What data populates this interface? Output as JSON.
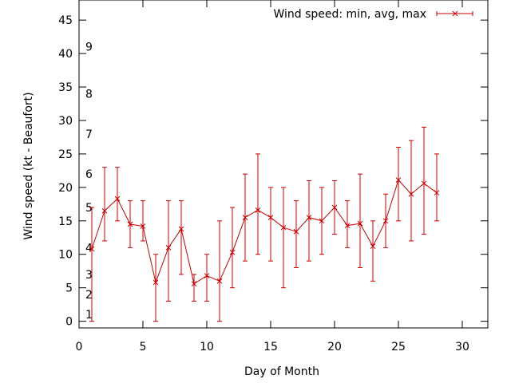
{
  "chart_data": {
    "type": "line",
    "xlabel": "Day of Month",
    "ylabel": "Wind speed (kt - Beaufort)",
    "xlim": [
      0,
      32
    ],
    "ylim": [
      -1,
      48
    ],
    "x_ticks": [
      0,
      5,
      10,
      15,
      20,
      25,
      30
    ],
    "y_ticks": [
      0,
      5,
      10,
      15,
      20,
      25,
      30,
      35,
      40,
      45
    ],
    "x_tick_labels": [
      "0",
      "5",
      "10",
      "15",
      "20",
      "25",
      "30"
    ],
    "y_tick_labels": [
      "0",
      "5",
      "10",
      "15",
      "20",
      "25",
      "30",
      "35",
      "40",
      "45"
    ],
    "beaufort_labels": [
      {
        "label": "1",
        "y": 1
      },
      {
        "label": "2",
        "y": 4
      },
      {
        "label": "3",
        "y": 7
      },
      {
        "label": "4",
        "y": 11
      },
      {
        "label": "5",
        "y": 17
      },
      {
        "label": "6",
        "y": 22
      },
      {
        "label": "7",
        "y": 28
      },
      {
        "label": "8",
        "y": 34
      },
      {
        "label": "9",
        "y": 41
      }
    ],
    "legend_position": "top-right",
    "series": [
      {
        "name": "Wind speed: min, avg, max",
        "color": "#cc0000",
        "x": [
          1,
          2,
          3,
          4,
          5,
          6,
          7,
          8,
          9,
          10,
          11,
          12,
          13,
          14,
          15,
          16,
          17,
          18,
          19,
          20,
          21,
          22,
          23,
          24,
          25,
          26,
          27,
          28
        ],
        "avg": [
          10.8,
          16.5,
          18.3,
          14.5,
          14.2,
          5.8,
          11.0,
          13.8,
          5.6,
          6.8,
          6.0,
          10.3,
          15.5,
          16.6,
          15.5,
          14.0,
          13.4,
          15.5,
          15.0,
          17.0,
          14.3,
          14.6,
          11.2,
          15.0,
          21.1,
          19.0,
          20.6,
          19.2
        ],
        "min": [
          0,
          12,
          15,
          11,
          12,
          0,
          3,
          7,
          3,
          3,
          0,
          5,
          9,
          10,
          9,
          5,
          8,
          9,
          10,
          13,
          11,
          8,
          6,
          11,
          15,
          12,
          13,
          15
        ],
        "max": [
          17,
          23,
          23,
          18,
          18,
          10,
          18,
          18,
          7,
          10,
          15,
          17,
          22,
          25,
          20,
          20,
          18,
          21,
          20,
          21,
          18,
          22,
          15,
          19,
          26,
          27,
          29,
          25
        ]
      }
    ]
  }
}
